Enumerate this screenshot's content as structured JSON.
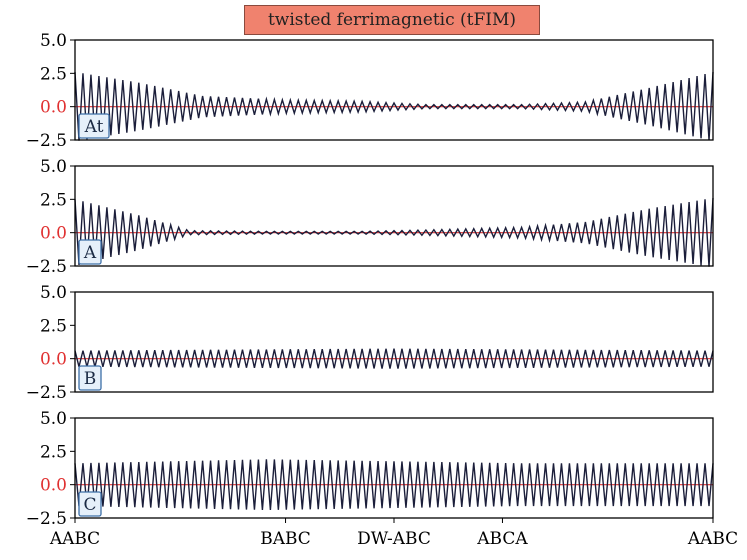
{
  "chart_data": {
    "type": "line",
    "title": "twisted ferrimagnetic (tFIM)",
    "xlabel": "",
    "ylabel": "",
    "x_tick_labels": [
      "AABC",
      "BABC",
      "DW-ABC",
      "ABCA",
      "AABC"
    ],
    "x_tick_positions": [
      0,
      0.33,
      0.5,
      0.67,
      1.0
    ],
    "xlim": [
      0,
      1
    ],
    "ylim": [
      -2.5,
      5.0
    ],
    "y_tick_labels": [
      "5.0",
      "2.5",
      "0.0",
      "−2.5"
    ],
    "y_tick_values": [
      5.0,
      2.5,
      0.0,
      -2.5
    ],
    "zero_line_color": "#e03030",
    "line_color": "#1b1e3a",
    "oscillation_periods": 80,
    "panels": [
      {
        "label": "At",
        "description_mean": 0.0,
        "envelope_amplitude": [
          {
            "x": 0.0,
            "amp": 2.6
          },
          {
            "x": 0.1,
            "amp": 1.8
          },
          {
            "x": 0.2,
            "amp": 0.8
          },
          {
            "x": 0.33,
            "amp": 0.5
          },
          {
            "x": 0.45,
            "amp": 0.4
          },
          {
            "x": 0.55,
            "amp": 0.15
          },
          {
            "x": 0.7,
            "amp": 0.15
          },
          {
            "x": 0.8,
            "amp": 0.35
          },
          {
            "x": 0.9,
            "amp": 1.4
          },
          {
            "x": 1.0,
            "amp": 2.6
          }
        ]
      },
      {
        "label": "A",
        "envelope_amplitude": [
          {
            "x": 0.0,
            "amp": 2.5
          },
          {
            "x": 0.1,
            "amp": 1.3
          },
          {
            "x": 0.18,
            "amp": 0.15
          },
          {
            "x": 0.3,
            "amp": 0.1
          },
          {
            "x": 0.45,
            "amp": 0.1
          },
          {
            "x": 0.55,
            "amp": 0.2
          },
          {
            "x": 0.7,
            "amp": 0.4
          },
          {
            "x": 0.8,
            "amp": 0.8
          },
          {
            "x": 0.9,
            "amp": 1.8
          },
          {
            "x": 1.0,
            "amp": 2.6
          }
        ]
      },
      {
        "label": "B",
        "envelope_amplitude": [
          {
            "x": 0.0,
            "amp": 0.6
          },
          {
            "x": 0.5,
            "amp": 0.75
          },
          {
            "x": 1.0,
            "amp": 0.6
          }
        ]
      },
      {
        "label": "C",
        "envelope_amplitude": [
          {
            "x": 0.0,
            "amp": 1.6
          },
          {
            "x": 0.3,
            "amp": 1.9
          },
          {
            "x": 0.5,
            "amp": 1.75
          },
          {
            "x": 0.7,
            "amp": 1.6
          },
          {
            "x": 1.0,
            "amp": 1.6
          }
        ]
      }
    ]
  }
}
